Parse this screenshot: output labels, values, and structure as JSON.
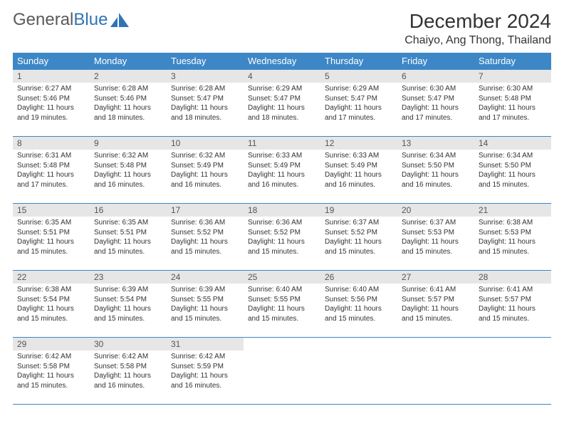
{
  "brand": {
    "word1": "General",
    "word2": "Blue",
    "accent_color": "#2f74b5"
  },
  "title": "December 2024",
  "location": "Chaiyo, Ang Thong, Thailand",
  "header_bg": "#3d87c7",
  "header_fg": "#ffffff",
  "daynum_bg": "#e6e6e6",
  "border_color": "#3d87c7",
  "weekdays": [
    "Sunday",
    "Monday",
    "Tuesday",
    "Wednesday",
    "Thursday",
    "Friday",
    "Saturday"
  ],
  "weeks": [
    [
      {
        "day": "1",
        "sunrise": "Sunrise: 6:27 AM",
        "sunset": "Sunset: 5:46 PM",
        "daylight": "Daylight: 11 hours and 19 minutes."
      },
      {
        "day": "2",
        "sunrise": "Sunrise: 6:28 AM",
        "sunset": "Sunset: 5:46 PM",
        "daylight": "Daylight: 11 hours and 18 minutes."
      },
      {
        "day": "3",
        "sunrise": "Sunrise: 6:28 AM",
        "sunset": "Sunset: 5:47 PM",
        "daylight": "Daylight: 11 hours and 18 minutes."
      },
      {
        "day": "4",
        "sunrise": "Sunrise: 6:29 AM",
        "sunset": "Sunset: 5:47 PM",
        "daylight": "Daylight: 11 hours and 18 minutes."
      },
      {
        "day": "5",
        "sunrise": "Sunrise: 6:29 AM",
        "sunset": "Sunset: 5:47 PM",
        "daylight": "Daylight: 11 hours and 17 minutes."
      },
      {
        "day": "6",
        "sunrise": "Sunrise: 6:30 AM",
        "sunset": "Sunset: 5:47 PM",
        "daylight": "Daylight: 11 hours and 17 minutes."
      },
      {
        "day": "7",
        "sunrise": "Sunrise: 6:30 AM",
        "sunset": "Sunset: 5:48 PM",
        "daylight": "Daylight: 11 hours and 17 minutes."
      }
    ],
    [
      {
        "day": "8",
        "sunrise": "Sunrise: 6:31 AM",
        "sunset": "Sunset: 5:48 PM",
        "daylight": "Daylight: 11 hours and 17 minutes."
      },
      {
        "day": "9",
        "sunrise": "Sunrise: 6:32 AM",
        "sunset": "Sunset: 5:48 PM",
        "daylight": "Daylight: 11 hours and 16 minutes."
      },
      {
        "day": "10",
        "sunrise": "Sunrise: 6:32 AM",
        "sunset": "Sunset: 5:49 PM",
        "daylight": "Daylight: 11 hours and 16 minutes."
      },
      {
        "day": "11",
        "sunrise": "Sunrise: 6:33 AM",
        "sunset": "Sunset: 5:49 PM",
        "daylight": "Daylight: 11 hours and 16 minutes."
      },
      {
        "day": "12",
        "sunrise": "Sunrise: 6:33 AM",
        "sunset": "Sunset: 5:49 PM",
        "daylight": "Daylight: 11 hours and 16 minutes."
      },
      {
        "day": "13",
        "sunrise": "Sunrise: 6:34 AM",
        "sunset": "Sunset: 5:50 PM",
        "daylight": "Daylight: 11 hours and 16 minutes."
      },
      {
        "day": "14",
        "sunrise": "Sunrise: 6:34 AM",
        "sunset": "Sunset: 5:50 PM",
        "daylight": "Daylight: 11 hours and 15 minutes."
      }
    ],
    [
      {
        "day": "15",
        "sunrise": "Sunrise: 6:35 AM",
        "sunset": "Sunset: 5:51 PM",
        "daylight": "Daylight: 11 hours and 15 minutes."
      },
      {
        "day": "16",
        "sunrise": "Sunrise: 6:35 AM",
        "sunset": "Sunset: 5:51 PM",
        "daylight": "Daylight: 11 hours and 15 minutes."
      },
      {
        "day": "17",
        "sunrise": "Sunrise: 6:36 AM",
        "sunset": "Sunset: 5:52 PM",
        "daylight": "Daylight: 11 hours and 15 minutes."
      },
      {
        "day": "18",
        "sunrise": "Sunrise: 6:36 AM",
        "sunset": "Sunset: 5:52 PM",
        "daylight": "Daylight: 11 hours and 15 minutes."
      },
      {
        "day": "19",
        "sunrise": "Sunrise: 6:37 AM",
        "sunset": "Sunset: 5:52 PM",
        "daylight": "Daylight: 11 hours and 15 minutes."
      },
      {
        "day": "20",
        "sunrise": "Sunrise: 6:37 AM",
        "sunset": "Sunset: 5:53 PM",
        "daylight": "Daylight: 11 hours and 15 minutes."
      },
      {
        "day": "21",
        "sunrise": "Sunrise: 6:38 AM",
        "sunset": "Sunset: 5:53 PM",
        "daylight": "Daylight: 11 hours and 15 minutes."
      }
    ],
    [
      {
        "day": "22",
        "sunrise": "Sunrise: 6:38 AM",
        "sunset": "Sunset: 5:54 PM",
        "daylight": "Daylight: 11 hours and 15 minutes."
      },
      {
        "day": "23",
        "sunrise": "Sunrise: 6:39 AM",
        "sunset": "Sunset: 5:54 PM",
        "daylight": "Daylight: 11 hours and 15 minutes."
      },
      {
        "day": "24",
        "sunrise": "Sunrise: 6:39 AM",
        "sunset": "Sunset: 5:55 PM",
        "daylight": "Daylight: 11 hours and 15 minutes."
      },
      {
        "day": "25",
        "sunrise": "Sunrise: 6:40 AM",
        "sunset": "Sunset: 5:55 PM",
        "daylight": "Daylight: 11 hours and 15 minutes."
      },
      {
        "day": "26",
        "sunrise": "Sunrise: 6:40 AM",
        "sunset": "Sunset: 5:56 PM",
        "daylight": "Daylight: 11 hours and 15 minutes."
      },
      {
        "day": "27",
        "sunrise": "Sunrise: 6:41 AM",
        "sunset": "Sunset: 5:57 PM",
        "daylight": "Daylight: 11 hours and 15 minutes."
      },
      {
        "day": "28",
        "sunrise": "Sunrise: 6:41 AM",
        "sunset": "Sunset: 5:57 PM",
        "daylight": "Daylight: 11 hours and 15 minutes."
      }
    ],
    [
      {
        "day": "29",
        "sunrise": "Sunrise: 6:42 AM",
        "sunset": "Sunset: 5:58 PM",
        "daylight": "Daylight: 11 hours and 15 minutes."
      },
      {
        "day": "30",
        "sunrise": "Sunrise: 6:42 AM",
        "sunset": "Sunset: 5:58 PM",
        "daylight": "Daylight: 11 hours and 16 minutes."
      },
      {
        "day": "31",
        "sunrise": "Sunrise: 6:42 AM",
        "sunset": "Sunset: 5:59 PM",
        "daylight": "Daylight: 11 hours and 16 minutes."
      },
      {
        "empty": true
      },
      {
        "empty": true
      },
      {
        "empty": true
      },
      {
        "empty": true
      }
    ]
  ]
}
